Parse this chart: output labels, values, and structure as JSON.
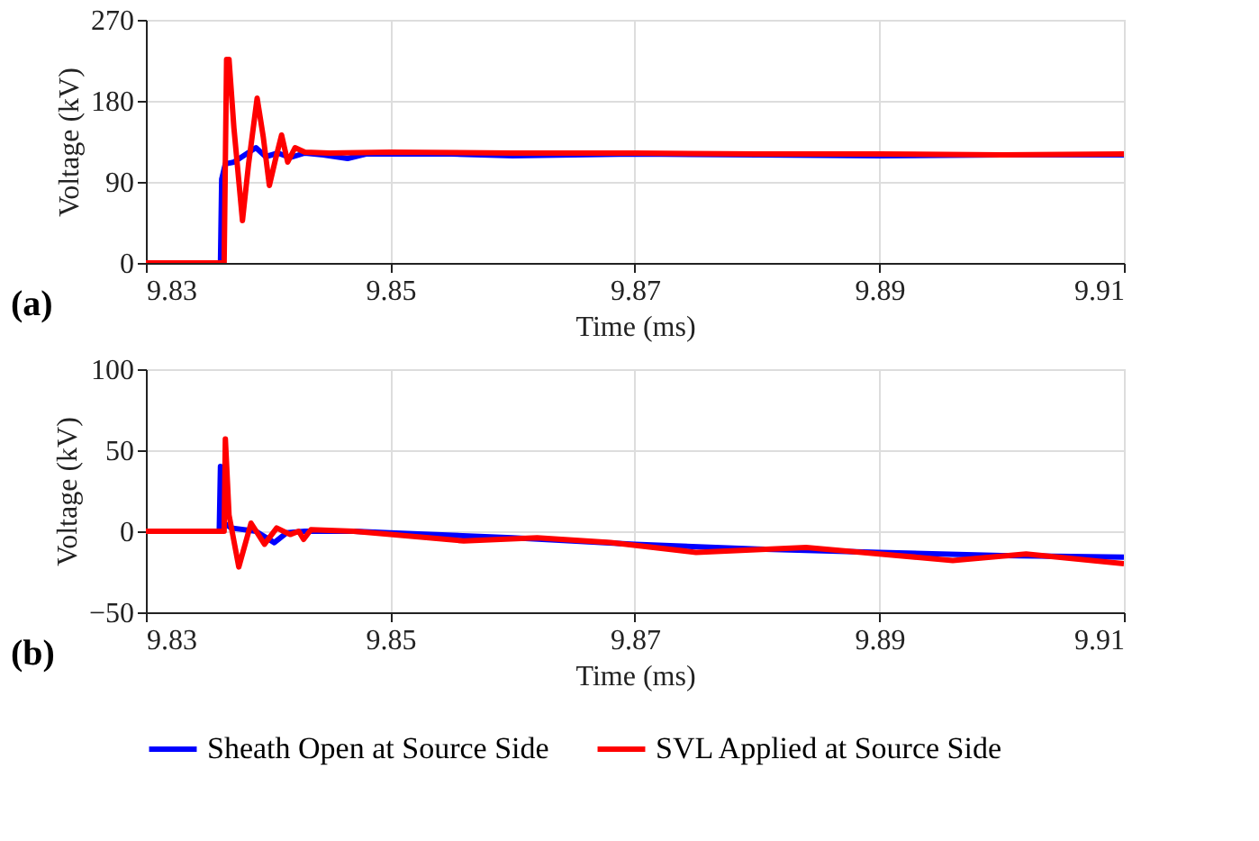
{
  "chart_data": [
    {
      "type": "line",
      "xlabel": "Time (ms)",
      "ylabel": "Voltage (kV)",
      "xlim": [
        9.83,
        9.91
      ],
      "xticks": [
        9.83,
        9.85,
        9.87,
        9.89,
        9.91
      ],
      "ylim": [
        0,
        270
      ],
      "yticks": [
        0,
        90,
        180,
        270
      ],
      "grid": true,
      "line_style": "solid",
      "annotations": [
        "(a)"
      ],
      "series": [
        {
          "color": "#0000ff",
          "x": [
            9.83,
            9.8361,
            9.8362,
            9.8365,
            9.8372,
            9.839,
            9.8398,
            9.8408,
            9.8418,
            9.843,
            9.8445,
            9.8465,
            9.848,
            9.855,
            9.86,
            9.87,
            9.88,
            9.89,
            9.9,
            9.91
          ],
          "values": [
            0,
            0,
            93,
            110,
            112,
            128,
            118,
            122,
            117,
            122,
            120,
            116,
            121,
            121,
            119,
            121,
            120,
            119,
            120,
            120
          ]
        },
        {
          "color": "#ff0000",
          "x": [
            9.83,
            9.8364,
            9.8366,
            9.8368,
            9.8372,
            9.8379,
            9.8384,
            9.8391,
            9.8396,
            9.8401,
            9.8406,
            9.8411,
            9.8416,
            9.8422,
            9.843,
            9.845,
            9.85,
            9.86,
            9.87,
            9.88,
            9.89,
            9.9,
            9.91
          ],
          "values": [
            0,
            0,
            226,
            226,
            150,
            47,
            110,
            183,
            140,
            86,
            115,
            142,
            112,
            128,
            123,
            122,
            123,
            122,
            122,
            121,
            121,
            120,
            121
          ]
        }
      ]
    },
    {
      "type": "line",
      "xlabel": "Time (ms)",
      "ylabel": "Voltage (kV)",
      "xlim": [
        9.83,
        9.91
      ],
      "xticks": [
        9.83,
        9.85,
        9.87,
        9.89,
        9.91
      ],
      "ylim": [
        -50,
        100
      ],
      "yticks": [
        -50,
        0,
        50,
        100
      ],
      "grid": true,
      "line_style": "solid",
      "legend": "bottom",
      "annotations": [
        "(b)"
      ],
      "series": [
        {
          "name": "Sheath Open at Source Side",
          "color": "#0000ff",
          "x": [
            9.83,
            9.836,
            9.8361,
            9.8364,
            9.837,
            9.839,
            9.8405,
            9.8415,
            9.843,
            9.847,
            9.85,
            9.86,
            9.87,
            9.88,
            9.89,
            9.9,
            9.91
          ],
          "values": [
            0,
            0,
            40,
            5,
            2,
            0,
            -7,
            -1,
            0,
            0,
            -1,
            -4,
            -8,
            -11,
            -13,
            -15,
            -16
          ]
        },
        {
          "name": "SVL Applied at Source Side",
          "color": "#ff0000",
          "x": [
            9.83,
            9.8364,
            9.8365,
            9.8368,
            9.8376,
            9.8386,
            9.8397,
            9.8407,
            9.8418,
            9.8425,
            9.8429,
            9.8435,
            9.847,
            9.85,
            9.856,
            9.862,
            9.868,
            9.875,
            9.884,
            9.89,
            9.896,
            9.902,
            9.91
          ],
          "values": [
            0,
            0,
            57,
            10,
            -22,
            5,
            -8,
            2,
            -2,
            0,
            -5,
            1,
            0,
            -2,
            -6,
            -4,
            -7,
            -13,
            -10,
            -14,
            -18,
            -14,
            -20
          ]
        }
      ]
    }
  ]
}
